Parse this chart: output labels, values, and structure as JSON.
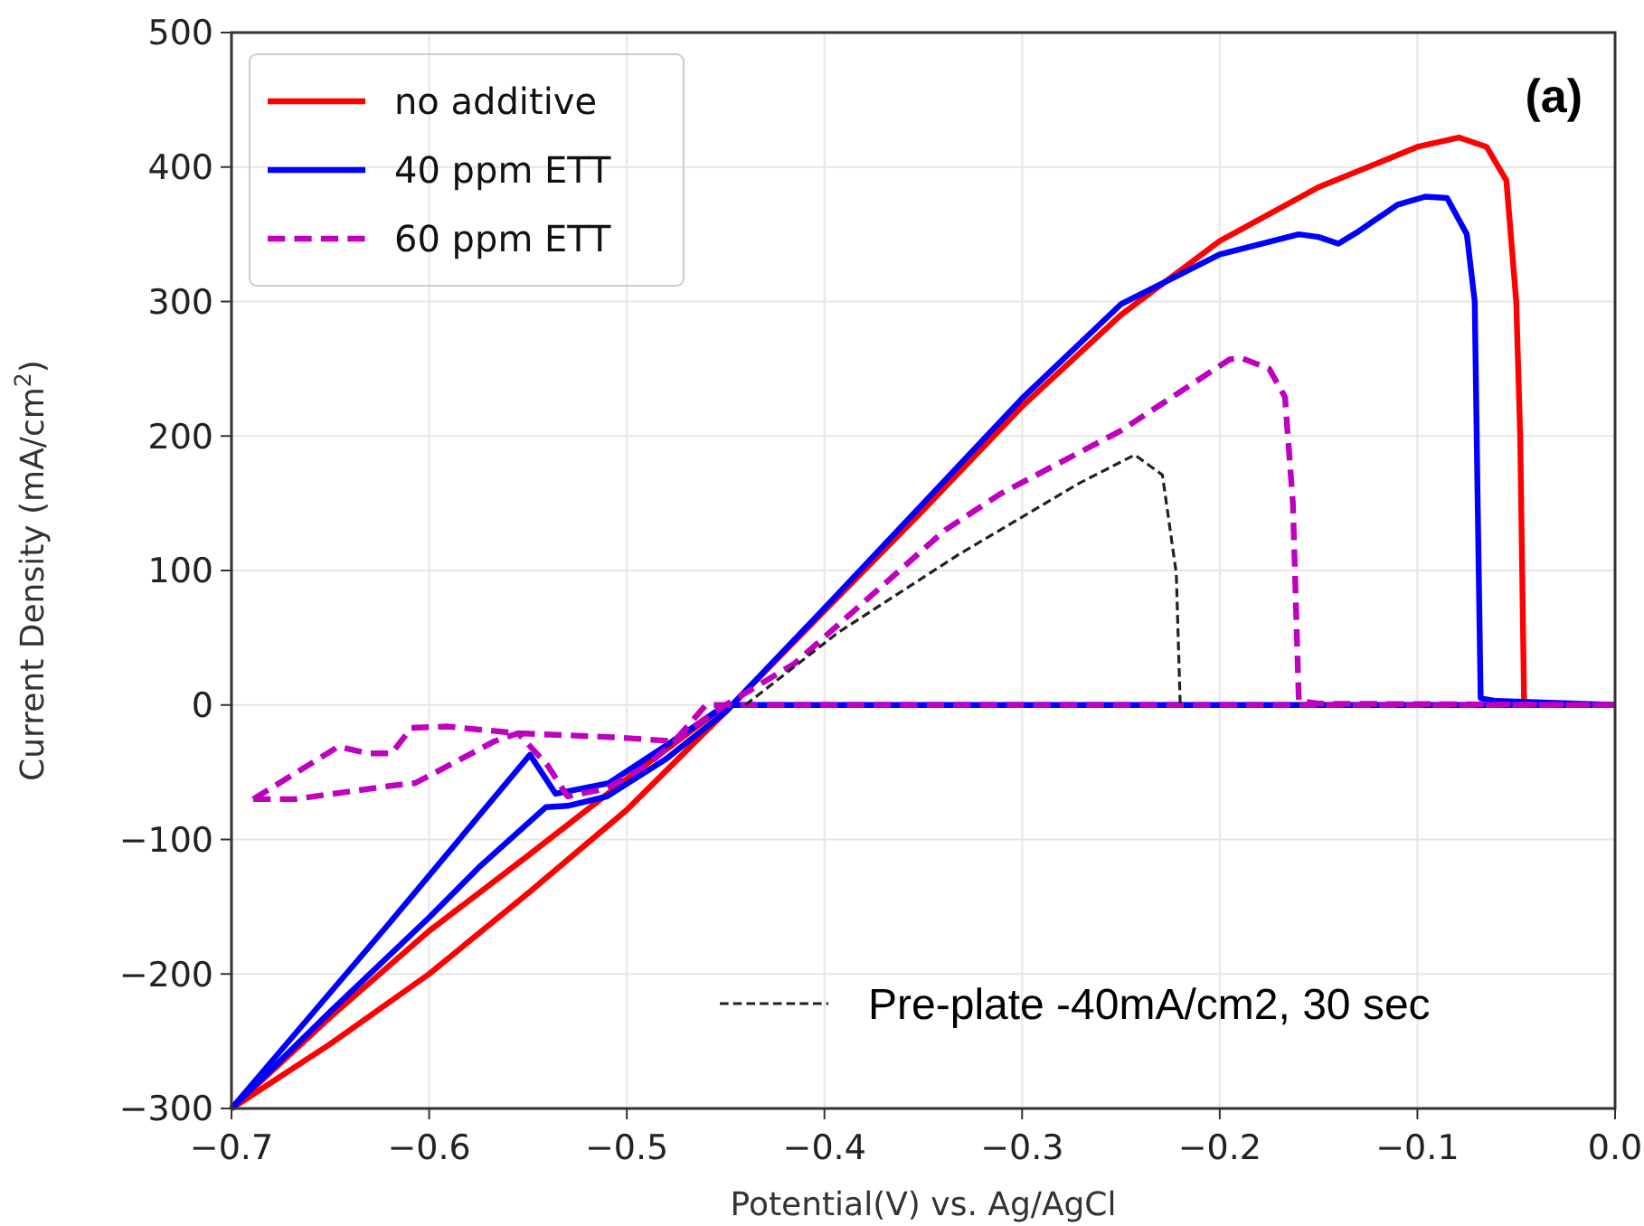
{
  "chart_data": {
    "type": "line",
    "xlabel": "Potential(V) vs. Ag/AgCl",
    "ylabel": "Current Density (mA/cm$^{2}$)",
    "xlim": [
      -0.7,
      0
    ],
    "ylim": [
      -300,
      500
    ],
    "xticks": [
      {
        "value": -0.7,
        "label": "−0.7"
      },
      {
        "value": -0.6,
        "label": "−0.6"
      },
      {
        "value": -0.5,
        "label": "−0.5"
      },
      {
        "value": -0.4,
        "label": "−0.4"
      },
      {
        "value": -0.3,
        "label": "−0.3"
      },
      {
        "value": -0.2,
        "label": "−0.2"
      },
      {
        "value": -0.1,
        "label": "−0.1"
      },
      {
        "value": 0,
        "label": "0.0"
      }
    ],
    "yticks": [
      {
        "value": -300,
        "label": "−300"
      },
      {
        "value": -200,
        "label": "−200"
      },
      {
        "value": -100,
        "label": "−100"
      },
      0,
      100,
      200,
      300,
      400,
      500
    ],
    "grid": true,
    "legend": "top left",
    "annotations": [
      "(a)",
      "Pre-plate -40mA/cm2, 30 sec"
    ],
    "series": [
      {
        "name": "no additive",
        "color": "#ff0000",
        "line_style": "solid",
        "x": [
          -0.7,
          -0.65,
          -0.6,
          -0.55,
          -0.5,
          -0.45,
          -0.4,
          -0.35,
          -0.3,
          -0.25,
          -0.2,
          -0.15,
          -0.1,
          -0.079,
          -0.065,
          -0.055,
          -0.05,
          -0.048,
          -0.047,
          -0.046,
          -0.02,
          0
        ],
        "values": [
          -300,
          -252,
          -200,
          -140,
          -78,
          -5,
          70,
          145,
          222,
          290,
          345,
          385,
          415,
          422,
          415,
          390,
          300,
          200,
          100,
          0,
          0,
          0
        ]
      },
      {
        "color": "#ff0000",
        "line_style": "solid",
        "x": [
          -0.7,
          -0.65,
          -0.6,
          -0.55,
          -0.5,
          -0.45
        ],
        "values": [
          -300,
          -232,
          -168,
          -112,
          -55,
          0
        ]
      },
      {
        "name": "40 ppm ETT",
        "color": "#0000ff",
        "line_style": "solid",
        "x": [
          -0.7,
          -0.65,
          -0.6,
          -0.575,
          -0.541,
          -0.53,
          -0.51,
          -0.48,
          -0.45,
          -0.4,
          -0.35,
          -0.3,
          -0.25,
          -0.2,
          -0.16,
          -0.15,
          -0.14,
          -0.13,
          -0.11,
          -0.096,
          -0.085,
          -0.075,
          -0.071,
          -0.0695,
          -0.068,
          -0.06,
          0
        ],
        "values": [
          -300,
          -228,
          -158,
          -121,
          -76,
          -75,
          -68,
          -40,
          -5,
          72,
          150,
          228,
          298,
          335,
          350,
          348,
          343,
          352,
          372,
          378,
          377,
          350,
          300,
          150,
          5,
          3,
          0
        ]
      },
      {
        "color": "#0000ff",
        "line_style": "solid",
        "x": [
          -0.7,
          -0.62,
          -0.549,
          -0.536,
          -0.509,
          -0.48,
          -0.45,
          0
        ],
        "values": [
          -300,
          -162,
          -37,
          -66,
          -58,
          -30,
          0,
          0
        ]
      },
      {
        "name": "60 ppm ETT",
        "color": "#bf00bf",
        "line_style": "dashed",
        "x": [
          -0.689,
          -0.668,
          -0.619,
          -0.607,
          -0.567,
          -0.555,
          -0.54,
          -0.53,
          -0.51,
          -0.49,
          -0.47,
          -0.45,
          -0.415,
          -0.339,
          -0.311,
          -0.25,
          -0.195,
          -0.189,
          -0.175,
          -0.167,
          -0.163,
          -0.16,
          -0.15,
          0
        ],
        "values": [
          -70,
          -70,
          -60,
          -58,
          -27,
          -21,
          -45,
          -68,
          -62,
          -45,
          -20,
          0,
          31,
          130,
          157,
          204,
          257,
          258,
          250,
          229,
          150,
          3,
          1,
          0
        ]
      },
      {
        "color": "#bf00bf",
        "line_style": "dashed",
        "x": [
          -0.689,
          -0.646,
          -0.631,
          -0.619,
          -0.609,
          -0.591,
          -0.555,
          -0.506,
          -0.476,
          -0.46,
          0
        ],
        "values": [
          -70,
          -31,
          -36,
          -36,
          -17,
          -16,
          -21,
          -24,
          -27,
          0,
          0
        ]
      },
      {
        "color": "#222222",
        "line_style": "dashed",
        "x": [
          -0.44,
          -0.393,
          -0.332,
          -0.271,
          -0.243,
          -0.229,
          -0.222,
          -0.22
        ],
        "values": [
          0,
          54,
          112,
          165,
          186,
          171,
          98,
          0
        ]
      }
    ]
  }
}
